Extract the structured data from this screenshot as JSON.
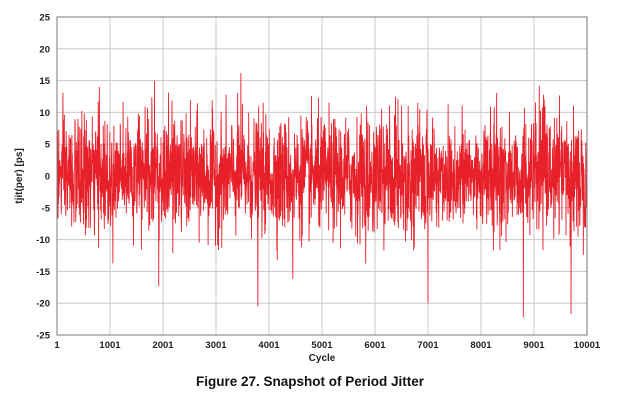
{
  "figure": {
    "caption": "Figure 27. Snapshot of Period Jitter"
  },
  "chart_data": {
    "type": "line",
    "title": "",
    "xlabel": "Cycle",
    "ylabel": "tjit(per) [ps]",
    "xlim": [
      1,
      10001
    ],
    "ylim": [
      -25,
      25
    ],
    "x_ticks": [
      1,
      1001,
      2001,
      3001,
      4001,
      5001,
      6001,
      7001,
      8001,
      9001,
      10001
    ],
    "y_ticks": [
      25,
      20,
      15,
      10,
      5,
      0,
      -5,
      -10,
      -15,
      -20,
      -25
    ],
    "grid": true,
    "legend": "none",
    "series": [
      {
        "color": "#e8202a",
        "description": "approximately normal random jitter, mean 0 ps, visible band about -10 to +10 ps",
        "peaks": [
          {
            "x": 3470,
            "y": 16.2
          },
          {
            "x": 1840,
            "y": 15.0
          },
          {
            "x": 9100,
            "y": 14.2
          },
          {
            "x": 800,
            "y": 14.0
          },
          {
            "x": 3790,
            "y": -20.5
          },
          {
            "x": 7000,
            "y": -20.0
          },
          {
            "x": 8800,
            "y": -22.2
          },
          {
            "x": 9700,
            "y": -21.7
          },
          {
            "x": 1920,
            "y": -17.3
          },
          {
            "x": 4450,
            "y": -16.2
          }
        ]
      }
    ]
  }
}
